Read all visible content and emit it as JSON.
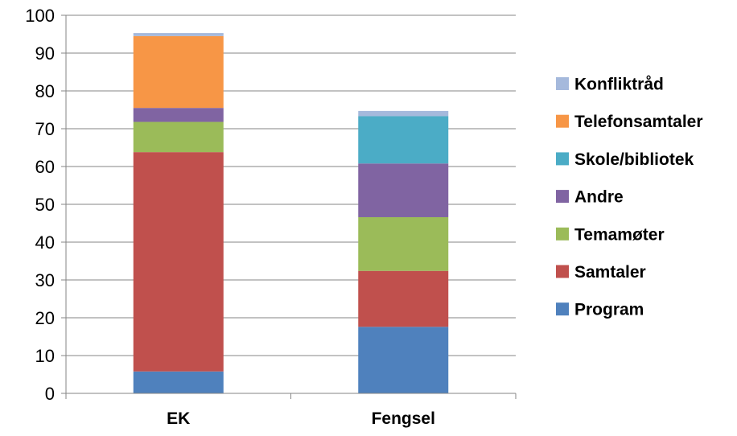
{
  "chart_data": {
    "type": "bar",
    "stacked": true,
    "title": "",
    "xlabel": "",
    "ylabel": "",
    "ylim": [
      0,
      100
    ],
    "yticks": [
      0,
      10,
      20,
      30,
      40,
      50,
      60,
      70,
      80,
      90,
      100
    ],
    "grid": true,
    "legend_position": "right",
    "categories": [
      "EK",
      "Fengsel"
    ],
    "series": [
      {
        "name": "Program",
        "color": "#4f81bd",
        "values": [
          5.8,
          17.6
        ]
      },
      {
        "name": "Samtaler",
        "color": "#c0504d",
        "values": [
          58.0,
          14.8
        ]
      },
      {
        "name": "Temamøter",
        "color": "#9bbb59",
        "values": [
          8.0,
          14.2
        ]
      },
      {
        "name": "Andre",
        "color": "#8064a2",
        "values": [
          3.7,
          14.2
        ]
      },
      {
        "name": "Skole/bibliotek",
        "color": "#4bacc6",
        "values": [
          0.0,
          12.5
        ]
      },
      {
        "name": "Telefonsamtaler",
        "color": "#f79646",
        "values": [
          19.0,
          0.0
        ]
      },
      {
        "name": "Konfliktråd",
        "color": "#a5b9dc",
        "values": [
          0.8,
          1.4
        ]
      }
    ]
  }
}
